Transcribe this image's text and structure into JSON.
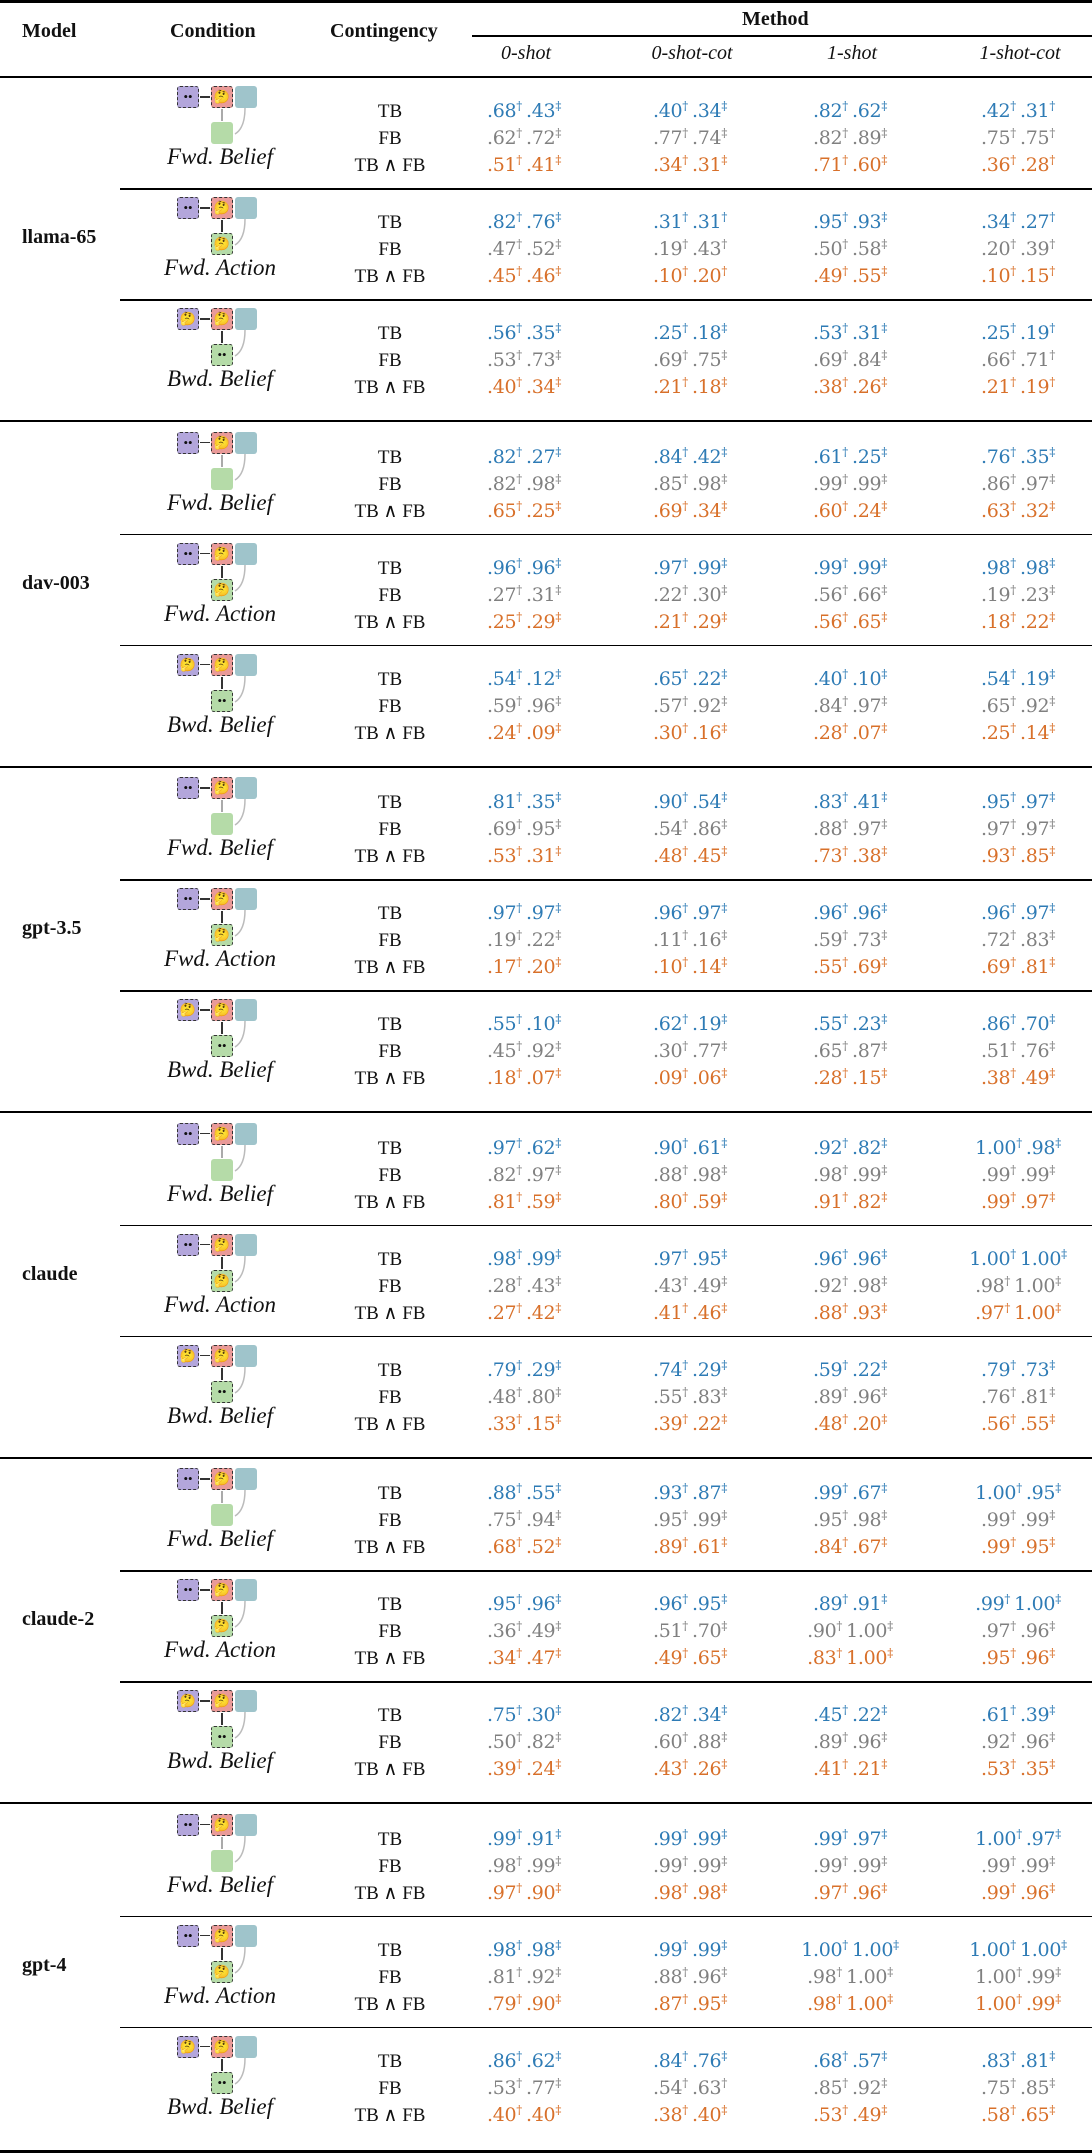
{
  "header": {
    "model": "Model",
    "condition": "Condition",
    "contingency": "Contingency",
    "method": "Method",
    "methods": [
      "0-shot",
      "0-shot-cot",
      "1-shot",
      "1-shot-cot"
    ]
  },
  "contingency_labels": [
    "TB",
    "FB",
    "TB ∧ FB"
  ],
  "colors": {
    "TB": "#2e7bb5",
    "FB": "#808080",
    "TB_and_FB": "#d8702a"
  },
  "conditions": {
    "fwd_belief": {
      "label": "Fwd. Belief",
      "diagram": "eyes(purple) -> thinking(red); red -> green(empty); teal -> green"
    },
    "fwd_action": {
      "label": "Fwd. Action",
      "diagram": "eyes(purple) -> thinking(red) -> thinking(green); teal -> green"
    },
    "bwd_belief": {
      "label": "Bwd. Belief",
      "diagram": "thinking(purple) -> thinking(red) -> eyes(green); teal -> green"
    }
  },
  "groups": [
    {
      "model": "llama-65",
      "blocks": [
        {
          "condition": "Fwd. Belief",
          "rows": [
            [
              ".68†",
              ".43‡",
              ".40†",
              ".34‡",
              ".82†",
              ".62‡",
              ".42†",
              ".31†"
            ],
            [
              ".62†",
              ".72‡",
              ".77†",
              ".74‡",
              ".82†",
              ".89‡",
              ".75†",
              ".75†"
            ],
            [
              ".51†",
              ".41‡",
              ".34†",
              ".31‡",
              ".71†",
              ".60‡",
              ".36†",
              ".28†"
            ]
          ]
        },
        {
          "condition": "Fwd. Action",
          "rows": [
            [
              ".82†",
              ".76‡",
              ".31†",
              ".31†",
              ".95†",
              ".93‡",
              ".34†",
              ".27†"
            ],
            [
              ".47†",
              ".52‡",
              ".19†",
              ".43†",
              ".50†",
              ".58‡",
              ".20†",
              ".39†"
            ],
            [
              ".45†",
              ".46‡",
              ".10†",
              ".20†",
              ".49†",
              ".55‡",
              ".10†",
              ".15†"
            ]
          ]
        },
        {
          "condition": "Bwd. Belief",
          "rows": [
            [
              ".56†",
              ".35‡",
              ".25†",
              ".18‡",
              ".53†",
              ".31‡",
              ".25†",
              ".19†"
            ],
            [
              ".53†",
              ".73‡",
              ".69†",
              ".75‡",
              ".69†",
              ".84‡",
              ".66†",
              ".71†"
            ],
            [
              ".40†",
              ".34‡",
              ".21†",
              ".18‡",
              ".38†",
              ".26‡",
              ".21†",
              ".19†"
            ]
          ]
        }
      ]
    },
    {
      "model": "dav-003",
      "blocks": [
        {
          "condition": "Fwd. Belief",
          "rows": [
            [
              ".82†",
              ".27‡",
              ".84†",
              ".42‡",
              ".61†",
              ".25‡",
              ".76†",
              ".35‡"
            ],
            [
              ".82†",
              ".98‡",
              ".85†",
              ".98‡",
              ".99†",
              ".99‡",
              ".86†",
              ".97‡"
            ],
            [
              ".65†",
              ".25‡",
              ".69†",
              ".34‡",
              ".60†",
              ".24‡",
              ".63†",
              ".32‡"
            ]
          ]
        },
        {
          "condition": "Fwd. Action",
          "rows": [
            [
              ".96†",
              ".96‡",
              ".97†",
              ".99‡",
              ".99†",
              ".99‡",
              ".98†",
              ".98‡"
            ],
            [
              ".27†",
              ".31‡",
              ".22†",
              ".30‡",
              ".56†",
              ".66‡",
              ".19†",
              ".23‡"
            ],
            [
              ".25†",
              ".29‡",
              ".21†",
              ".29‡",
              ".56†",
              ".65‡",
              ".18†",
              ".22‡"
            ]
          ]
        },
        {
          "condition": "Bwd. Belief",
          "rows": [
            [
              ".54†",
              ".12‡",
              ".65†",
              ".22‡",
              ".40†",
              ".10‡",
              ".54†",
              ".19‡"
            ],
            [
              ".59†",
              ".96‡",
              ".57†",
              ".92‡",
              ".84†",
              ".97‡",
              ".65†",
              ".92‡"
            ],
            [
              ".24†",
              ".09‡",
              ".30†",
              ".16‡",
              ".28†",
              ".07‡",
              ".25†",
              ".14‡"
            ]
          ]
        }
      ]
    },
    {
      "model": "gpt-3.5",
      "blocks": [
        {
          "condition": "Fwd. Belief",
          "rows": [
            [
              ".81†",
              ".35‡",
              ".90†",
              ".54‡",
              ".83†",
              ".41‡",
              ".95†",
              ".97‡"
            ],
            [
              ".69†",
              ".95‡",
              ".54†",
              ".86‡",
              ".88†",
              ".97‡",
              ".97†",
              ".97‡"
            ],
            [
              ".53†",
              ".31‡",
              ".48†",
              ".45‡",
              ".73†",
              ".38‡",
              ".93†",
              ".85‡"
            ]
          ]
        },
        {
          "condition": "Fwd. Action",
          "rows": [
            [
              ".97†",
              ".97‡",
              ".96†",
              ".97‡",
              ".96†",
              ".96‡",
              ".96†",
              ".97‡"
            ],
            [
              ".19†",
              ".22‡",
              ".11†",
              ".16‡",
              ".59†",
              ".73‡",
              ".72†",
              ".83‡"
            ],
            [
              ".17†",
              ".20‡",
              ".10†",
              ".14‡",
              ".55†",
              ".69‡",
              ".69†",
              ".81‡"
            ]
          ]
        },
        {
          "condition": "Bwd. Belief",
          "rows": [
            [
              ".55†",
              ".10‡",
              ".62†",
              ".19‡",
              ".55†",
              ".23‡",
              ".86†",
              ".70‡"
            ],
            [
              ".45†",
              ".92‡",
              ".30†",
              ".77‡",
              ".65†",
              ".87‡",
              ".51†",
              ".76‡"
            ],
            [
              ".18†",
              ".07‡",
              ".09†",
              ".06‡",
              ".28†",
              ".15‡",
              ".38†",
              ".49‡"
            ]
          ]
        }
      ]
    },
    {
      "model": "claude",
      "blocks": [
        {
          "condition": "Fwd. Belief",
          "rows": [
            [
              ".97†",
              ".62‡",
              ".90†",
              ".61‡",
              ".92†",
              ".82‡",
              "1.00†",
              ".98‡"
            ],
            [
              ".82†",
              ".97‡",
              ".88†",
              ".98‡",
              ".98†",
              ".99‡",
              ".99†",
              ".99‡"
            ],
            [
              ".81†",
              ".59‡",
              ".80†",
              ".59‡",
              ".91†",
              ".82‡",
              ".99†",
              ".97‡"
            ]
          ]
        },
        {
          "condition": "Fwd. Action",
          "rows": [
            [
              ".98†",
              ".99‡",
              ".97†",
              ".95‡",
              ".96†",
              ".96‡",
              "1.00†",
              "1.00‡"
            ],
            [
              ".28†",
              ".43‡",
              ".43†",
              ".49‡",
              ".92†",
              ".98‡",
              ".98†",
              "1.00‡"
            ],
            [
              ".27†",
              ".42‡",
              ".41†",
              ".46‡",
              ".88†",
              ".93‡",
              ".97†",
              "1.00‡"
            ]
          ]
        },
        {
          "condition": "Bwd. Belief",
          "rows": [
            [
              ".79†",
              ".29‡",
              ".74†",
              ".29‡",
              ".59†",
              ".22‡",
              ".79†",
              ".73‡"
            ],
            [
              ".48†",
              ".80‡",
              ".55†",
              ".83‡",
              ".89†",
              ".96‡",
              ".76†",
              ".81‡"
            ],
            [
              ".33†",
              ".15‡",
              ".39†",
              ".22‡",
              ".48†",
              ".20‡",
              ".56†",
              ".55‡"
            ]
          ]
        }
      ]
    },
    {
      "model": "claude-2",
      "blocks": [
        {
          "condition": "Fwd. Belief",
          "rows": [
            [
              ".88†",
              ".55‡",
              ".93†",
              ".87‡",
              ".99†",
              ".67‡",
              "1.00†",
              ".95‡"
            ],
            [
              ".75†",
              ".94‡",
              ".95†",
              ".99‡",
              ".95†",
              ".98‡",
              ".99†",
              ".99‡"
            ],
            [
              ".68†",
              ".52‡",
              ".89†",
              ".61‡",
              ".84†",
              ".67‡",
              ".99†",
              ".95‡"
            ]
          ]
        },
        {
          "condition": "Fwd. Action",
          "rows": [
            [
              ".95†",
              ".96‡",
              ".96†",
              ".95‡",
              ".89†",
              ".91‡",
              ".99†",
              "1.00‡"
            ],
            [
              ".36†",
              ".49‡",
              ".51†",
              ".70‡",
              ".90†",
              "1.00‡",
              ".97†",
              ".96‡"
            ],
            [
              ".34†",
              ".47‡",
              ".49†",
              ".65‡",
              ".83†",
              "1.00‡",
              ".95†",
              ".96‡"
            ]
          ]
        },
        {
          "condition": "Bwd. Belief",
          "rows": [
            [
              ".75†",
              ".30‡",
              ".82†",
              ".34‡",
              ".45†",
              ".22‡",
              ".61†",
              ".39‡"
            ],
            [
              ".50†",
              ".82‡",
              ".60†",
              ".88‡",
              ".89†",
              ".96‡",
              ".92†",
              ".96‡"
            ],
            [
              ".39†",
              ".24‡",
              ".43†",
              ".26‡",
              ".41†",
              ".21‡",
              ".53†",
              ".35‡"
            ]
          ]
        }
      ]
    },
    {
      "model": "gpt-4",
      "blocks": [
        {
          "condition": "Fwd. Belief",
          "rows": [
            [
              ".99†",
              ".91‡",
              ".99†",
              ".99‡",
              ".99†",
              ".97‡",
              "1.00†",
              ".97‡"
            ],
            [
              ".98†",
              ".99‡",
              ".99†",
              ".99‡",
              ".99†",
              ".99‡",
              ".99†",
              ".99‡"
            ],
            [
              ".97†",
              ".90‡",
              ".98†",
              ".98‡",
              ".97†",
              ".96‡",
              ".99†",
              ".96‡"
            ]
          ]
        },
        {
          "condition": "Fwd. Action",
          "rows": [
            [
              ".98†",
              ".98‡",
              ".99†",
              ".99‡",
              "1.00†",
              "1.00‡",
              "1.00†",
              "1.00‡"
            ],
            [
              ".81†",
              ".92‡",
              ".88†",
              ".96‡",
              ".98†",
              "1.00‡",
              "1.00†",
              ".99‡"
            ],
            [
              ".79†",
              ".90‡",
              ".87†",
              ".95‡",
              ".98†",
              "1.00‡",
              "1.00†",
              ".99‡"
            ]
          ]
        },
        {
          "condition": "Bwd. Belief",
          "rows": [
            [
              ".86†",
              ".62‡",
              ".84†",
              ".76‡",
              ".68†",
              ".57‡",
              ".83†",
              ".81‡"
            ],
            [
              ".53†",
              ".77‡",
              ".54†",
              ".63†",
              ".85†",
              ".92‡",
              ".75†",
              ".85‡"
            ],
            [
              ".40†",
              ".40‡",
              ".38†",
              ".40‡",
              ".53†",
              ".49‡",
              ".58†",
              ".65‡"
            ]
          ]
        }
      ]
    }
  ]
}
